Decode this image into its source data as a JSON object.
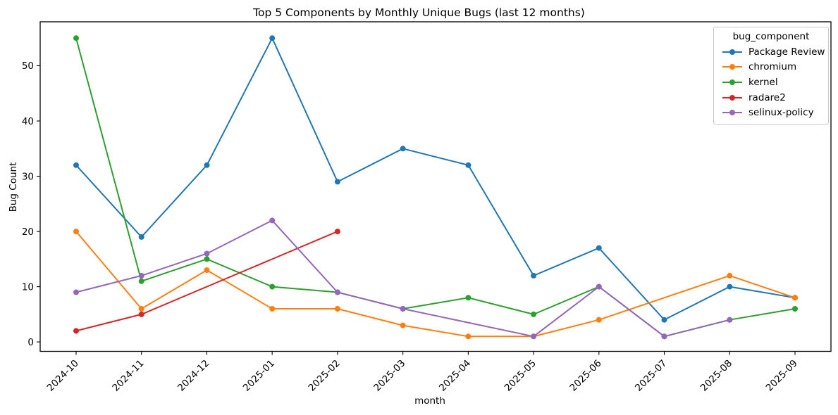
{
  "chart_data": {
    "type": "line",
    "title": "Top 5 Components by Monthly Unique Bugs (last 12 months)",
    "xlabel": "month",
    "ylabel": "Bug Count",
    "legend_title": "bug_component",
    "legend_position": "upper right",
    "grid": false,
    "background": "#ffffff",
    "axis_color": "#000000",
    "categories": [
      "2024-10",
      "2024-11",
      "2024-12",
      "2025-01",
      "2025-02",
      "2025-03",
      "2025-04",
      "2025-05",
      "2025-06",
      "2025-07",
      "2025-08",
      "2025-09"
    ],
    "yticks": [
      0,
      10,
      20,
      30,
      40,
      50
    ],
    "ylim": [
      -1.7,
      57.95
    ],
    "series": [
      {
        "name": "Package Review",
        "color": "#1f77b4",
        "values": [
          32,
          19,
          32,
          55,
          29,
          35,
          32,
          12,
          17,
          4,
          10,
          8
        ]
      },
      {
        "name": "chromium",
        "color": "#ff7f0e",
        "values": [
          20,
          6,
          13,
          6,
          6,
          3,
          1,
          1,
          4,
          null,
          12,
          8
        ]
      },
      {
        "name": "kernel",
        "color": "#2ca02c",
        "values": [
          55,
          11,
          15,
          10,
          9,
          6,
          8,
          5,
          10,
          1,
          4,
          6
        ]
      },
      {
        "name": "radare2",
        "color": "#d62728",
        "values": [
          2,
          5,
          null,
          null,
          20,
          null,
          null,
          null,
          null,
          null,
          null,
          null
        ]
      },
      {
        "name": "selinux-policy",
        "color": "#9467bd",
        "values": [
          9,
          12,
          16,
          22,
          9,
          6,
          null,
          1,
          10,
          1,
          4,
          null
        ]
      }
    ]
  }
}
